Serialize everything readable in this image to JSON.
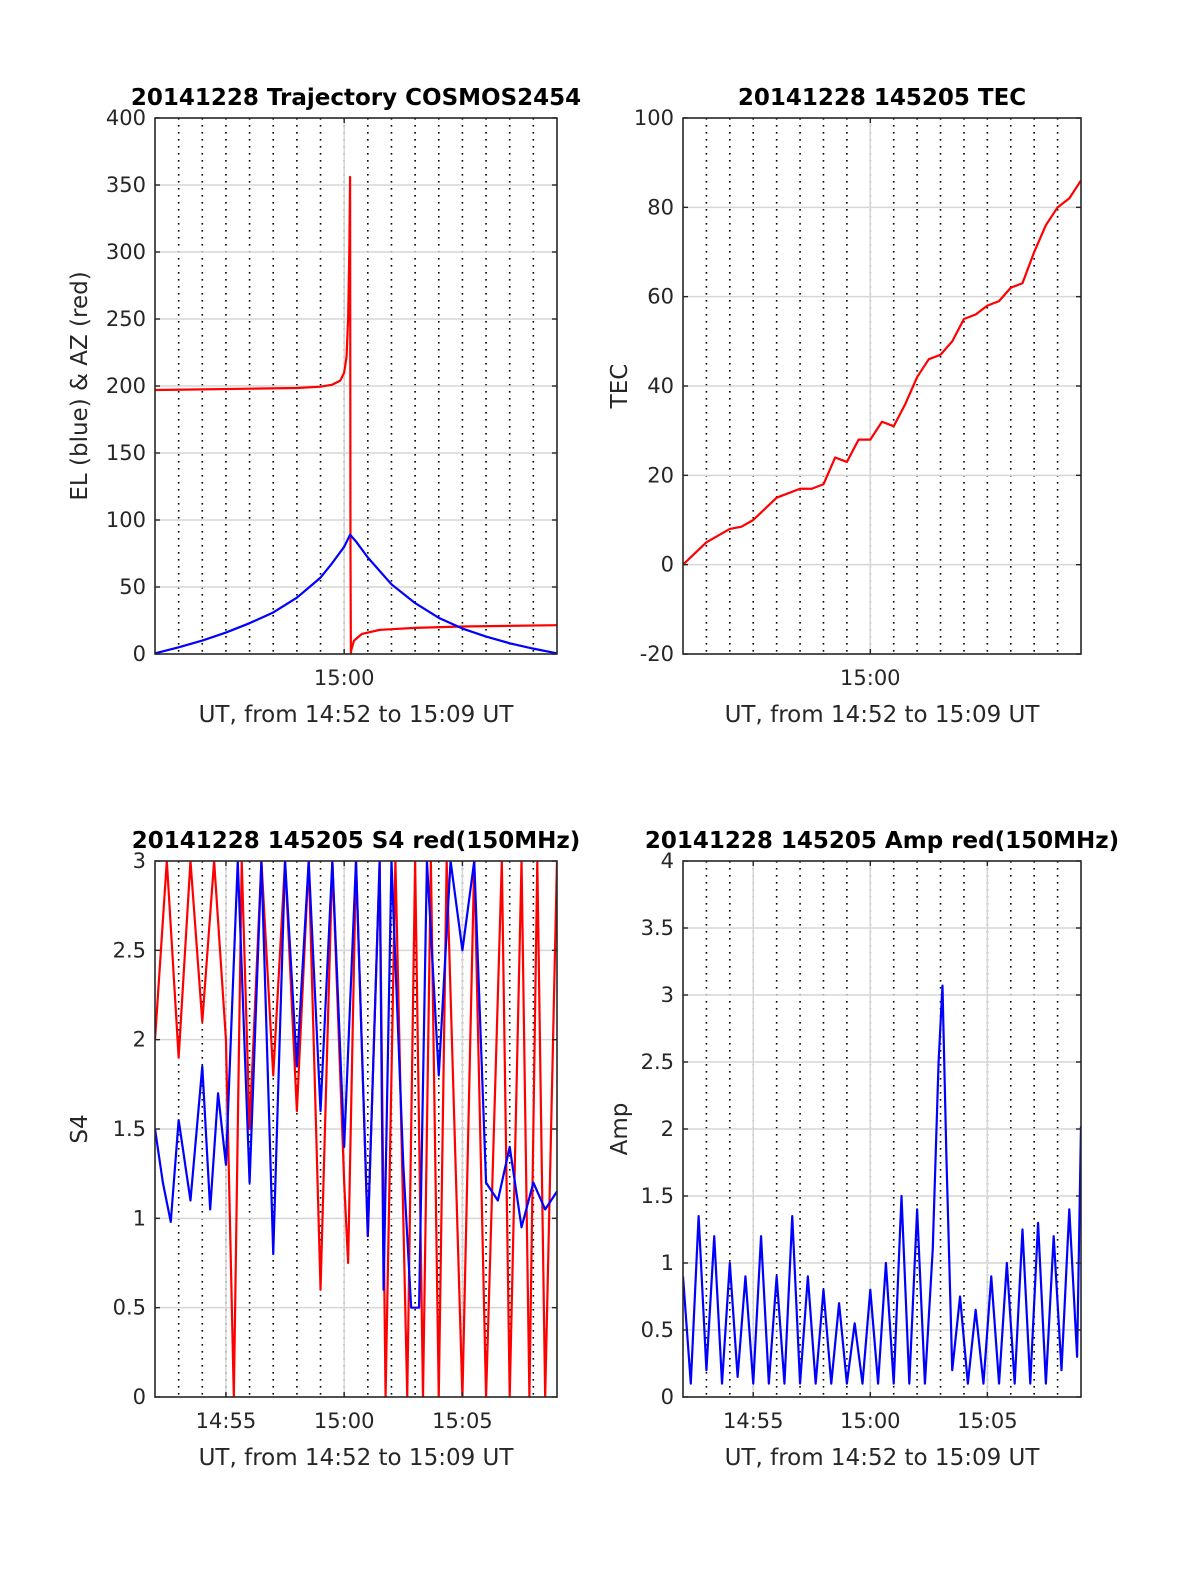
{
  "figure": {
    "background": "#ffffff"
  },
  "chart_data": [
    {
      "id": "p1",
      "type": "line",
      "title": "20141228 Trajectory COSMOS2454",
      "xlabel": "UT, from 14:52 to 15:09 UT",
      "ylabel": "EL (blue) & AZ (red)",
      "xlim": [
        "14:52",
        "15:09"
      ],
      "ylim": [
        0,
        400
      ],
      "yticks": [
        0,
        50,
        100,
        150,
        200,
        250,
        300,
        350,
        400
      ],
      "xticks": [
        "15:00"
      ],
      "grid": true,
      "minor_x_grid_step_minutes": 1,
      "series": [
        {
          "color": "#ff0000",
          "points": [
            [
              "14:52:00",
              197
            ],
            [
              "14:54:00",
              197.5
            ],
            [
              "14:56:00",
              198
            ],
            [
              "14:58:00",
              198.5
            ],
            [
              "14:59:00",
              199.5
            ],
            [
              "14:59:30",
              201
            ],
            [
              "14:59:50",
              204
            ],
            [
              "15:00:00",
              210
            ],
            [
              "15:00:06",
              222
            ],
            [
              "15:00:10",
              250
            ],
            [
              "15:00:13",
              300
            ],
            [
              "15:00:15",
              356
            ],
            [
              "15:00:16",
              80
            ],
            [
              "15:00:17",
              0
            ],
            [
              "15:00:18",
              3
            ],
            [
              "15:00:25",
              10
            ],
            [
              "15:00:45",
              15
            ],
            [
              "15:01:30",
              18
            ],
            [
              "15:03:00",
              19.5
            ],
            [
              "15:05:00",
              20.5
            ],
            [
              "15:09:00",
              21.5
            ]
          ]
        },
        {
          "color": "#0000ff",
          "points": [
            [
              "14:52:00",
              0.5
            ],
            [
              "14:53:00",
              5
            ],
            [
              "14:54:00",
              10
            ],
            [
              "14:55:00",
              16
            ],
            [
              "14:56:00",
              23
            ],
            [
              "14:57:00",
              31
            ],
            [
              "14:58:00",
              42
            ],
            [
              "14:59:00",
              57
            ],
            [
              "14:59:30",
              68
            ],
            [
              "15:00:00",
              80
            ],
            [
              "15:00:15",
              89
            ],
            [
              "15:00:30",
              84
            ],
            [
              "15:01:00",
              72
            ],
            [
              "15:02:00",
              52
            ],
            [
              "15:03:00",
              38
            ],
            [
              "15:04:00",
              27
            ],
            [
              "15:05:00",
              19
            ],
            [
              "15:06:00",
              13
            ],
            [
              "15:07:00",
              8
            ],
            [
              "15:08:00",
              4
            ],
            [
              "15:09:00",
              0.5
            ]
          ]
        }
      ]
    },
    {
      "id": "p2",
      "type": "line",
      "title": "20141228 145205 TEC",
      "xlabel": "UT, from 14:52 to 15:09 UT",
      "ylabel": "TEC",
      "xlim": [
        "14:52",
        "15:09"
      ],
      "ylim": [
        -20,
        100
      ],
      "yticks": [
        -20,
        0,
        20,
        40,
        60,
        80,
        100
      ],
      "xticks": [
        "15:00"
      ],
      "grid": true,
      "minor_x_grid_step_minutes": 1,
      "series": [
        {
          "color": "#ff0000",
          "points": [
            [
              "14:52:00",
              0
            ],
            [
              "14:53:00",
              5
            ],
            [
              "14:54:00",
              8
            ],
            [
              "14:54:30",
              8.5
            ],
            [
              "14:55:00",
              10
            ],
            [
              "14:56:00",
              15
            ],
            [
              "14:57:00",
              17
            ],
            [
              "14:57:30",
              17
            ],
            [
              "14:58:00",
              18
            ],
            [
              "14:58:30",
              24
            ],
            [
              "14:59:00",
              23
            ],
            [
              "14:59:30",
              28
            ],
            [
              "15:00:00",
              28
            ],
            [
              "15:00:30",
              32
            ],
            [
              "15:01:00",
              31
            ],
            [
              "15:01:30",
              36
            ],
            [
              "15:02:00",
              42
            ],
            [
              "15:02:30",
              46
            ],
            [
              "15:03:00",
              47
            ],
            [
              "15:03:30",
              50
            ],
            [
              "15:04:00",
              55
            ],
            [
              "15:04:30",
              56
            ],
            [
              "15:05:00",
              58
            ],
            [
              "15:05:30",
              59
            ],
            [
              "15:06:00",
              62
            ],
            [
              "15:06:30",
              63
            ],
            [
              "15:07:00",
              70
            ],
            [
              "15:07:30",
              76
            ],
            [
              "15:08:00",
              80
            ],
            [
              "15:08:30",
              82
            ],
            [
              "15:09:00",
              86
            ]
          ]
        }
      ]
    },
    {
      "id": "p3",
      "type": "line",
      "title": "20141228 145205 S4 red(150MHz)",
      "xlabel": "UT, from 14:52 to 15:09 UT",
      "ylabel": "S4",
      "xlim": [
        "14:52",
        "15:09"
      ],
      "ylim": [
        0,
        3
      ],
      "yticks": [
        0,
        0.5,
        1,
        1.5,
        2,
        2.5,
        3
      ],
      "xticks": [
        "14:55",
        "15:00",
        "15:05"
      ],
      "grid": true,
      "minor_x_grid_step_minutes": 1,
      "series": [
        {
          "color": "#ff0000",
          "points": [
            [
              "14:52:00",
              2.0
            ],
            [
              "14:52:30",
              3.0
            ],
            [
              "14:53:00",
              1.9
            ],
            [
              "14:53:30",
              3.0
            ],
            [
              "14:54:00",
              2.1
            ],
            [
              "14:54:30",
              3.0
            ],
            [
              "14:55:00",
              2.0
            ],
            [
              "14:55:20",
              0.0
            ],
            [
              "14:55:40",
              3.0
            ],
            [
              "14:56:00",
              1.5
            ],
            [
              "14:56:30",
              3.0
            ],
            [
              "14:57:00",
              1.8
            ],
            [
              "14:57:30",
              3.0
            ],
            [
              "14:58:00",
              1.6
            ],
            [
              "14:58:30",
              3.0
            ],
            [
              "14:59:00",
              0.6
            ],
            [
              "14:59:30",
              3.0
            ],
            [
              "15:00:00",
              1.2
            ],
            [
              "15:00:10",
              0.75
            ],
            [
              "15:00:30",
              3.0
            ],
            [
              "15:01:00",
              0.9
            ],
            [
              "15:01:30",
              3.0
            ],
            [
              "15:01:45",
              0.0
            ],
            [
              "15:02:10",
              3.0
            ],
            [
              "15:02:40",
              0.0
            ],
            [
              "15:03:00",
              3.0
            ],
            [
              "15:03:20",
              0.0
            ],
            [
              "15:03:40",
              3.0
            ],
            [
              "15:04:00",
              0.0
            ],
            [
              "15:04:20",
              3.0
            ],
            [
              "15:05:00",
              0.0
            ],
            [
              "15:05:30",
              3.0
            ],
            [
              "15:06:00",
              0.0
            ],
            [
              "15:06:40",
              3.0
            ],
            [
              "15:07:00",
              0.0
            ],
            [
              "15:07:30",
              3.0
            ],
            [
              "15:07:50",
              0.0
            ],
            [
              "15:08:10",
              3.0
            ],
            [
              "15:08:30",
              0.0
            ],
            [
              "15:09:00",
              3.0
            ]
          ]
        },
        {
          "color": "#0000ff",
          "points": [
            [
              "14:52:00",
              1.5
            ],
            [
              "14:52:20",
              1.2
            ],
            [
              "14:52:40",
              0.98
            ],
            [
              "14:53:00",
              1.55
            ],
            [
              "14:53:30",
              1.1
            ],
            [
              "14:54:00",
              1.85
            ],
            [
              "14:54:20",
              1.05
            ],
            [
              "14:54:40",
              1.7
            ],
            [
              "14:55:00",
              1.3
            ],
            [
              "14:55:30",
              3.0
            ],
            [
              "14:56:00",
              1.2
            ],
            [
              "14:56:30",
              3.0
            ],
            [
              "14:57:00",
              0.8
            ],
            [
              "14:57:30",
              3.0
            ],
            [
              "14:58:00",
              1.85
            ],
            [
              "14:58:30",
              3.0
            ],
            [
              "14:59:00",
              1.6
            ],
            [
              "14:59:30",
              3.0
            ],
            [
              "15:00:00",
              1.4
            ],
            [
              "15:00:30",
              3.0
            ],
            [
              "15:01:00",
              0.9
            ],
            [
              "15:01:30",
              3.0
            ],
            [
              "15:01:40",
              0.6
            ],
            [
              "15:02:00",
              3.0
            ],
            [
              "15:02:30",
              1.3
            ],
            [
              "15:02:50",
              0.5
            ],
            [
              "15:03:10",
              0.5
            ],
            [
              "15:03:30",
              3.0
            ],
            [
              "15:04:00",
              1.8
            ],
            [
              "15:04:30",
              3.0
            ],
            [
              "15:05:00",
              2.5
            ],
            [
              "15:05:30",
              3.0
            ],
            [
              "15:06:00",
              1.2
            ],
            [
              "15:06:30",
              1.1
            ],
            [
              "15:07:00",
              1.4
            ],
            [
              "15:07:30",
              0.95
            ],
            [
              "15:08:00",
              1.2
            ],
            [
              "15:08:30",
              1.05
            ],
            [
              "15:09:00",
              1.15
            ]
          ]
        }
      ]
    },
    {
      "id": "p4",
      "type": "line",
      "title": "20141228 145205 Amp red(150MHz)",
      "xlabel": "UT, from 14:52 to 15:09 UT",
      "ylabel": "Amp",
      "xlim": [
        "14:52",
        "15:09"
      ],
      "ylim": [
        0,
        4
      ],
      "yticks": [
        0,
        0.5,
        1,
        1.5,
        2,
        2.5,
        3,
        3.5,
        4
      ],
      "xticks": [
        "14:55",
        "15:00",
        "15:05"
      ],
      "grid": true,
      "minor_x_grid_step_minutes": 1,
      "series": [
        {
          "color": "#0000ff",
          "points": [
            [
              "14:52:00",
              0.9
            ],
            [
              "14:52:20",
              0.1
            ],
            [
              "14:52:40",
              1.35
            ],
            [
              "14:53:00",
              0.2
            ],
            [
              "14:53:20",
              1.2
            ],
            [
              "14:53:40",
              0.1
            ],
            [
              "14:54:00",
              1.0
            ],
            [
              "14:54:20",
              0.15
            ],
            [
              "14:54:40",
              0.9
            ],
            [
              "14:55:00",
              0.1
            ],
            [
              "14:55:20",
              1.2
            ],
            [
              "14:55:40",
              0.1
            ],
            [
              "14:56:00",
              0.9
            ],
            [
              "14:56:20",
              0.1
            ],
            [
              "14:56:40",
              1.35
            ],
            [
              "14:57:00",
              0.1
            ],
            [
              "14:57:20",
              0.9
            ],
            [
              "14:57:40",
              0.1
            ],
            [
              "14:58:00",
              0.8
            ],
            [
              "14:58:20",
              0.1
            ],
            [
              "14:58:40",
              0.7
            ],
            [
              "14:59:00",
              0.1
            ],
            [
              "14:59:20",
              0.55
            ],
            [
              "14:59:40",
              0.1
            ],
            [
              "15:00:00",
              0.8
            ],
            [
              "15:00:20",
              0.1
            ],
            [
              "15:00:40",
              1.0
            ],
            [
              "15:01:00",
              0.1
            ],
            [
              "15:01:20",
              1.5
            ],
            [
              "15:01:40",
              0.1
            ],
            [
              "15:02:00",
              1.4
            ],
            [
              "15:02:20",
              0.1
            ],
            [
              "15:02:40",
              1.1
            ],
            [
              "15:02:55",
              2.5
            ],
            [
              "15:03:05",
              3.07
            ],
            [
              "15:03:15",
              1.8
            ],
            [
              "15:03:30",
              0.2
            ],
            [
              "15:03:50",
              0.75
            ],
            [
              "15:04:10",
              0.1
            ],
            [
              "15:04:30",
              0.65
            ],
            [
              "15:04:50",
              0.1
            ],
            [
              "15:05:10",
              0.9
            ],
            [
              "15:05:30",
              0.1
            ],
            [
              "15:05:50",
              1.0
            ],
            [
              "15:06:10",
              0.1
            ],
            [
              "15:06:30",
              1.25
            ],
            [
              "15:06:50",
              0.1
            ],
            [
              "15:07:10",
              1.3
            ],
            [
              "15:07:30",
              0.1
            ],
            [
              "15:07:50",
              1.2
            ],
            [
              "15:08:10",
              0.2
            ],
            [
              "15:08:30",
              1.4
            ],
            [
              "15:08:50",
              0.3
            ],
            [
              "15:09:00",
              2.02
            ]
          ]
        }
      ]
    }
  ]
}
